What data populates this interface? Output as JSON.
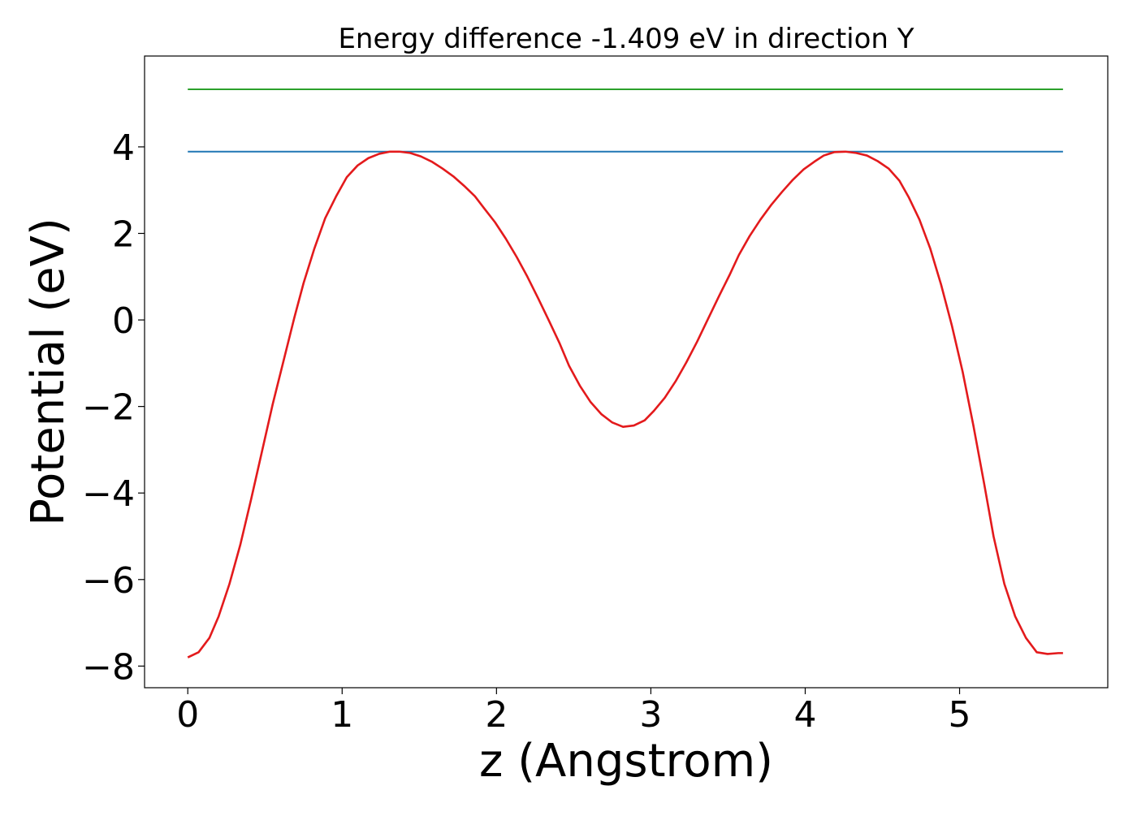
{
  "chart_data": {
    "type": "line",
    "title": "Energy difference -1.409 eV in direction Y",
    "xlabel": "z (Angstrom)",
    "ylabel": "Potential (eV)",
    "xlim": [
      -0.28,
      5.96
    ],
    "ylim": [
      -8.5,
      6.1
    ],
    "xticks": [
      0,
      1,
      2,
      3,
      4,
      5
    ],
    "xtick_labels": [
      "0",
      "1",
      "2",
      "3",
      "4",
      "5"
    ],
    "yticks": [
      -8,
      -6,
      -4,
      -2,
      0,
      2,
      4
    ],
    "ytick_labels": [
      "−8",
      "−6",
      "−4",
      "−2",
      "0",
      "2",
      "4"
    ],
    "grid": false,
    "series": [
      {
        "color": "#2ca02c",
        "x": [
          0,
          5.67
        ],
        "y": [
          5.33,
          5.33
        ]
      },
      {
        "color": "#1f77b4",
        "x": [
          0,
          5.67
        ],
        "y": [
          3.89,
          3.89
        ]
      },
      {
        "color": "#e31a1c",
        "x": [
          0.0,
          0.07,
          0.14,
          0.2,
          0.27,
          0.34,
          0.41,
          0.48,
          0.55,
          0.62,
          0.69,
          0.75,
          0.82,
          0.89,
          0.96,
          1.03,
          1.1,
          1.17,
          1.24,
          1.31,
          1.37,
          1.44,
          1.51,
          1.58,
          1.65,
          1.72,
          1.79,
          1.86,
          1.92,
          1.99,
          2.06,
          2.13,
          2.2,
          2.27,
          2.34,
          2.41,
          2.47,
          2.54,
          2.61,
          2.68,
          2.75,
          2.82,
          2.89,
          2.96,
          3.02,
          3.09,
          3.16,
          3.23,
          3.3,
          3.37,
          3.44,
          3.51,
          3.57,
          3.64,
          3.71,
          3.78,
          3.85,
          3.92,
          3.99,
          4.06,
          4.12,
          4.19,
          4.26,
          4.33,
          4.4,
          4.47,
          4.54,
          4.61,
          4.67,
          4.74,
          4.81,
          4.88,
          4.95,
          5.02,
          5.09,
          5.16,
          5.22,
          5.29,
          5.36,
          5.43,
          5.5,
          5.57,
          5.64,
          5.67
        ],
        "y": [
          -7.8,
          -7.68,
          -7.35,
          -6.85,
          -6.1,
          -5.2,
          -4.15,
          -3.05,
          -1.95,
          -0.95,
          0.05,
          0.85,
          1.65,
          2.35,
          2.85,
          3.3,
          3.57,
          3.74,
          3.84,
          3.89,
          3.89,
          3.86,
          3.78,
          3.66,
          3.5,
          3.32,
          3.1,
          2.86,
          2.58,
          2.26,
          1.88,
          1.46,
          1.0,
          0.5,
          -0.02,
          -0.55,
          -1.06,
          -1.52,
          -1.9,
          -2.18,
          -2.37,
          -2.47,
          -2.44,
          -2.32,
          -2.1,
          -1.8,
          -1.42,
          -0.98,
          -0.5,
          0.02,
          0.54,
          1.04,
          1.5,
          1.94,
          2.32,
          2.66,
          2.96,
          3.24,
          3.48,
          3.66,
          3.8,
          3.88,
          3.89,
          3.86,
          3.8,
          3.67,
          3.5,
          3.22,
          2.84,
          2.32,
          1.65,
          0.82,
          -0.13,
          -1.2,
          -2.45,
          -3.8,
          -5.0,
          -6.1,
          -6.85,
          -7.35,
          -7.68,
          -7.72,
          -7.7,
          -7.7
        ]
      }
    ]
  }
}
